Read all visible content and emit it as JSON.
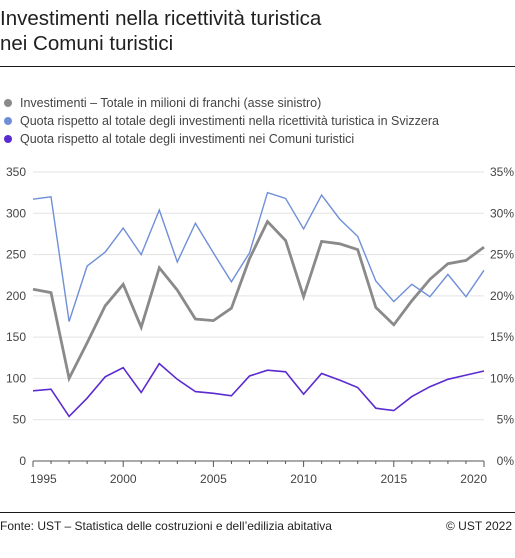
{
  "title_line1": "Investimenti nella ricettività turistica",
  "title_line2": "nei Comuni turistici",
  "source": "Fonte: UST – Statistica delle costruzioni e dell’edilizia abitativa",
  "copyright": "© UST 2022",
  "colors": {
    "investments": "#8a8a8a",
    "share_switzerland": "#6f8fd8",
    "share_communes": "#5b2bd0",
    "grid": "#e3e3e3",
    "axis": "#555555"
  },
  "chart_data": {
    "type": "line",
    "legend_position": "top",
    "x": [
      1995,
      1996,
      1997,
      1998,
      1999,
      2000,
      2001,
      2002,
      2003,
      2004,
      2005,
      2006,
      2007,
      2008,
      2009,
      2010,
      2011,
      2012,
      2013,
      2014,
      2015,
      2016,
      2017,
      2018,
      2019,
      2020
    ],
    "x_ticks": [
      "1995",
      "2000",
      "2005",
      "2010",
      "2015",
      "2020"
    ],
    "y_left_ticks": [
      "0",
      "50",
      "100",
      "150",
      "200",
      "250",
      "300",
      "350"
    ],
    "y_right_ticks": [
      "0%",
      "5%",
      "10%",
      "15%",
      "20%",
      "25%",
      "30%",
      "35%"
    ],
    "ylim_left": [
      0,
      350
    ],
    "ylim_right": [
      0,
      35
    ],
    "grid": true,
    "series": [
      {
        "name": "Investimenti – Totale in milioni di franchi (asse sinistro)",
        "axis": "left",
        "values": [
          208,
          204,
          100,
          143,
          188,
          214,
          162,
          234,
          207,
          172,
          170,
          185,
          245,
          290,
          267,
          199,
          266,
          263,
          256,
          186,
          165,
          194,
          220,
          239,
          243,
          259
        ]
      },
      {
        "name": "Quota rispetto al totale degli investimenti nella ricettività turistica in Svizzera",
        "axis": "right",
        "values": [
          31.7,
          32.0,
          16.9,
          23.6,
          25.3,
          28.2,
          25.0,
          30.4,
          24.1,
          28.8,
          25.2,
          21.7,
          25.2,
          32.5,
          31.8,
          28.1,
          32.2,
          29.3,
          27.2,
          21.8,
          19.3,
          21.4,
          19.9,
          22.6,
          19.9,
          23.1
        ]
      },
      {
        "name": "Quota rispetto al totale degli investimenti nei Comuni turistici",
        "axis": "right",
        "values": [
          8.5,
          8.7,
          5.4,
          7.6,
          10.2,
          11.3,
          8.3,
          11.8,
          9.9,
          8.4,
          8.2,
          7.9,
          10.3,
          11.0,
          10.8,
          8.1,
          10.6,
          9.8,
          8.9,
          6.4,
          6.1,
          7.8,
          9.0,
          9.9,
          10.4,
          10.9
        ]
      }
    ]
  }
}
